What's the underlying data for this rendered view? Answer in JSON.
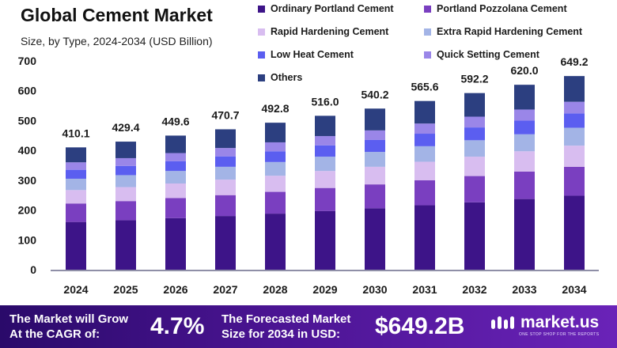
{
  "header": {
    "title": "Global Cement Market",
    "subtitle": "Size, by Type, 2024-2034 (USD Billion)"
  },
  "chart_data": {
    "type": "bar",
    "stacked": true,
    "categories": [
      "2024",
      "2025",
      "2026",
      "2027",
      "2028",
      "2029",
      "2030",
      "2031",
      "2032",
      "2033",
      "2034"
    ],
    "totals": [
      410.1,
      429.4,
      449.6,
      470.7,
      492.8,
      516.0,
      540.2,
      565.6,
      592.2,
      620.0,
      649.2
    ],
    "total_labels": [
      "410.1",
      "429.4",
      "449.6",
      "470.7",
      "492.8",
      "516.0",
      "540.2",
      "565.6",
      "592.2",
      "620.0",
      "649.2"
    ],
    "ylim": [
      0,
      700
    ],
    "yticks": [
      0,
      100,
      200,
      300,
      400,
      500,
      600,
      700
    ],
    "grid": false,
    "legend_position": "top-right",
    "series": [
      {
        "name": "Ordinary Portland Cement",
        "color": "#3d1488",
        "values": [
          160,
          166,
          173,
          180,
          188,
          197,
          206,
          216,
          226,
          237,
          248
        ]
      },
      {
        "name": "Portland Pozzolana Cement",
        "color": "#7a3fc0",
        "values": [
          62,
          64,
          67,
          70,
          73,
          77,
          80,
          84,
          88,
          92,
          97
        ]
      },
      {
        "name": "Rapid Hardening Cement",
        "color": "#d8bdf0",
        "values": [
          45,
          47,
          49,
          52,
          54,
          57,
          59,
          62,
          65,
          68,
          71
        ]
      },
      {
        "name": "Extra Rapid Hardening Cement",
        "color": "#a3b4e6",
        "values": [
          38,
          40,
          42,
          43,
          46,
          48,
          50,
          52,
          55,
          57,
          60
        ]
      },
      {
        "name": "Low Heat Cement",
        "color": "#5b5ef0",
        "values": [
          30,
          31,
          33,
          35,
          36,
          38,
          40,
          42,
          43,
          46,
          48
        ]
      },
      {
        "name": "Quick Setting Cement",
        "color": "#9a86e8",
        "values": [
          25,
          26,
          27,
          28,
          30,
          31,
          32,
          34,
          36,
          37,
          39
        ]
      },
      {
        "name": "Others",
        "color": "#2c3f80",
        "values": [
          50.1,
          55.4,
          58.6,
          62.7,
          65.8,
          68.0,
          73.2,
          75.6,
          79.2,
          83.0,
          86.2
        ]
      }
    ]
  },
  "footer": {
    "cagr_label_line1": "The Market will Grow",
    "cagr_label_line2": "At the CAGR of:",
    "cagr_value": "4.7%",
    "forecast_label_line1": "The Forecasted Market",
    "forecast_label_line2": "Size for 2034 in USD:",
    "forecast_value": "$649.2B",
    "brand_name": "market.us",
    "brand_tagline": "ONE STOP SHOP FOR THE REPORTS",
    "background_colors": [
      "#2a0a6a",
      "#6a23b8"
    ]
  }
}
